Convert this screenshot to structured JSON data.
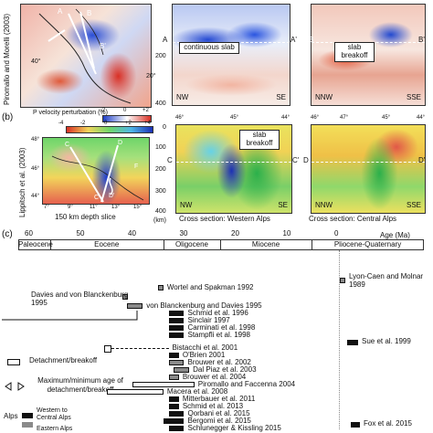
{
  "panel_a": {
    "side_label": "Piromallo and Morelli (2003)",
    "map_letters": [
      "A",
      "B",
      "B'"
    ],
    "lat_labels": [
      "40°",
      "20°"
    ],
    "cs1": {
      "start": "A",
      "end": "A'",
      "depths": [
        "0",
        "200",
        "400"
      ],
      "left": "NW",
      "right": "SE",
      "annotation": "continuous slab"
    },
    "cs2": {
      "start": "B",
      "end": "B'",
      "left": "NNW",
      "right": "SSE",
      "annotation": "slab breakoff"
    }
  },
  "panel_b": {
    "label": "(b)",
    "side_label": "Lippitsch et al. (2003)",
    "colorbar_title": "P velocity perturbation (%)",
    "colorbar_ticks_top": [
      "-2",
      "0",
      "+2"
    ],
    "colorbar_ticks_bottom": [
      "-4",
      "-2",
      "0",
      "+2",
      "+4"
    ],
    "map_lat": [
      "48°",
      "46°",
      "44°"
    ],
    "map_lon": [
      "7°",
      "9°",
      "11°",
      "13°",
      "15°"
    ],
    "map_letters": [
      "C",
      "D",
      "F",
      "C'",
      "D'"
    ],
    "map_caption": "150 km depth slice",
    "cs3": {
      "top": [
        "46°",
        "45°",
        "44°"
      ],
      "depths": [
        "0",
        "100",
        "200",
        "300",
        "400"
      ],
      "unit": "(km)",
      "start": "C",
      "end": "C'",
      "left": "NW",
      "right": "SE",
      "annotation": "slab breakoff",
      "caption": "Cross section: Western Alps"
    },
    "cs4": {
      "top": [
        "46°",
        "47°",
        "45°",
        "44°"
      ],
      "start": "D",
      "end": "D'",
      "left": "NNW",
      "right": "SSE",
      "caption": "Cross section: Central Alps"
    }
  },
  "panel_c": {
    "label": "(c)",
    "age_title": "Age (Ma)",
    "ticks": [
      "60",
      "50",
      "40",
      "30",
      "20",
      "10",
      "0"
    ],
    "epochs": [
      "Paleocene",
      "Eocene",
      "Oligocene",
      "Miocene",
      "Pliocene-Quaternary"
    ],
    "legend": {
      "detachment": "Detachment/breakoff",
      "maxmin": "Maximum/minimum age of detachment/breakoff",
      "alps_label": "Alps",
      "alps_text": "Western to Central Alps",
      "eastern": "Eastern Alps"
    },
    "references": [
      {
        "text": "Wortel and Spakman 1992",
        "start": 35,
        "end": 34,
        "style": "gray"
      },
      {
        "text": "Davies and von Blanckenburg 1995",
        "start": 42,
        "end": 41,
        "style": "gray"
      },
      {
        "text": "von Blanckenburg and Davies 1995",
        "start": 41,
        "end": 38,
        "style": "gray"
      },
      {
        "text": "Schmid et al. 1996",
        "start": 33,
        "end": 30,
        "style": "black"
      },
      {
        "text": "Sinclair 1997",
        "start": 33,
        "end": 30,
        "style": "black"
      },
      {
        "text": "Carminati et al. 1998",
        "start": 33,
        "end": 30,
        "style": "black"
      },
      {
        "text": "Stampfli et al. 1998",
        "start": 33,
        "end": 30,
        "style": "black"
      },
      {
        "text": "Bistacchi et al. 2001",
        "start": 45,
        "end": 33,
        "style": "dash"
      },
      {
        "text": "O'Brien 2001",
        "start": 33,
        "end": 31,
        "style": "black"
      },
      {
        "text": "Brouwer et al. 2002",
        "start": 33,
        "end": 30,
        "style": "gray"
      },
      {
        "text": "Dal Piaz et al. 2003",
        "start": 32,
        "end": 29,
        "style": "gray"
      },
      {
        "text": "Brouwer et al. 2004",
        "start": 33,
        "end": 31,
        "style": "gray"
      },
      {
        "text": "Piromallo and Faccenna 2004",
        "start": 40,
        "end": 28,
        "style": "white"
      },
      {
        "text": "Macera et al. 2008",
        "start": 45,
        "end": 34,
        "style": "white"
      },
      {
        "text": "Mitterbauer et al. 2011",
        "start": 33,
        "end": 31,
        "style": "black"
      },
      {
        "text": "Schmid et al. 2013",
        "start": 33,
        "end": 31,
        "style": "black"
      },
      {
        "text": "Qorbani et al. 2015",
        "start": 33,
        "end": 30,
        "style": "black"
      },
      {
        "text": "Bergomi et al. 2015",
        "start": 34,
        "end": 30,
        "style": "black"
      },
      {
        "text": "Schlunegger & Kissling 2015",
        "start": 33,
        "end": 30,
        "style": "black"
      }
    ],
    "right_refs": [
      {
        "text": "Lyon-Caen and Molnar 1989",
        "style": "gray"
      },
      {
        "text": "Sue et al. 1999",
        "style": "black"
      },
      {
        "text": "Fox et al. 2015",
        "style": "black"
      }
    ]
  }
}
